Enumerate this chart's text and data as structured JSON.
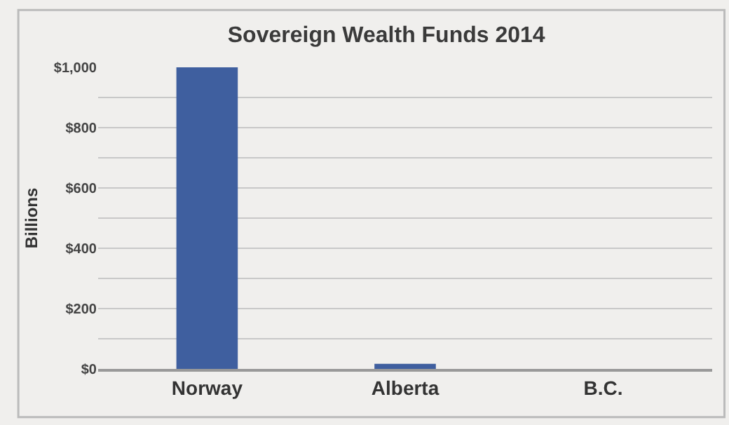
{
  "chart_data": {
    "type": "bar",
    "title": "Sovereign Wealth Funds 2014",
    "ylabel": "Billions",
    "categories": [
      "Norway",
      "Alberta",
      "B.C."
    ],
    "values": [
      1000,
      17,
      0
    ],
    "color": "#3f5f9f",
    "ylim": [
      0,
      1000
    ],
    "yticks": [
      {
        "value": 0,
        "label": "$0"
      },
      {
        "value": 100,
        "label": null
      },
      {
        "value": 200,
        "label": "$200"
      },
      {
        "value": 300,
        "label": null
      },
      {
        "value": 400,
        "label": "$400"
      },
      {
        "value": 500,
        "label": null
      },
      {
        "value": 600,
        "label": "$600"
      },
      {
        "value": 700,
        "label": null
      },
      {
        "value": 800,
        "label": "$800"
      },
      {
        "value": 900,
        "label": null
      },
      {
        "value": 1000,
        "label": "$1,000"
      }
    ],
    "grid": "y",
    "legend": false
  }
}
